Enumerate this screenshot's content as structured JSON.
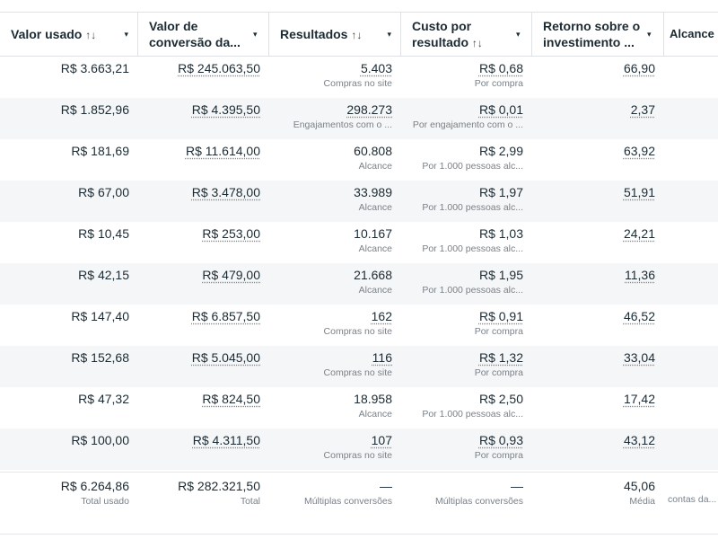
{
  "headers": [
    {
      "label": "Valor usado",
      "sort": "↑↓"
    },
    {
      "label": "Valor de conversão da...",
      "sort": ""
    },
    {
      "label": "Resultados",
      "sort": "↑↓"
    },
    {
      "label": "Custo por resultado",
      "sort": "↑↓"
    },
    {
      "label": "Retorno sobre o investimento ...",
      "sort": ""
    },
    {
      "label": "Alcance",
      "sort": ""
    }
  ],
  "dropdown_icon": "▾",
  "rows": [
    {
      "spent": "R$ 3.663,21",
      "conv": "R$ 245.063,50",
      "results": "5.403",
      "results_sub": "Compras no site",
      "cost": "R$ 0,68",
      "cost_sub": "Por compra",
      "roas": "66,90",
      "link": true
    },
    {
      "spent": "R$ 1.852,96",
      "conv": "R$ 4.395,50",
      "results": "298.273",
      "results_sub": "Engajamentos com o ...",
      "cost": "R$ 0,01",
      "cost_sub": "Por engajamento com o ...",
      "roas": "2,37",
      "link": true
    },
    {
      "spent": "R$ 181,69",
      "conv": "R$ 11.614,00",
      "results": "60.808",
      "results_sub": "Alcance",
      "cost": "R$ 2,99",
      "cost_sub": "Por 1.000 pessoas alc...",
      "roas": "63,92",
      "link": false
    },
    {
      "spent": "R$ 67,00",
      "conv": "R$ 3.478,00",
      "results": "33.989",
      "results_sub": "Alcance",
      "cost": "R$ 1,97",
      "cost_sub": "Por 1.000 pessoas alc...",
      "roas": "51,91",
      "link": false
    },
    {
      "spent": "R$ 10,45",
      "conv": "R$ 253,00",
      "results": "10.167",
      "results_sub": "Alcance",
      "cost": "R$ 1,03",
      "cost_sub": "Por 1.000 pessoas alc...",
      "roas": "24,21",
      "link": false
    },
    {
      "spent": "R$ 42,15",
      "conv": "R$ 479,00",
      "results": "21.668",
      "results_sub": "Alcance",
      "cost": "R$ 1,95",
      "cost_sub": "Por 1.000 pessoas alc...",
      "roas": "11,36",
      "link": false
    },
    {
      "spent": "R$ 147,40",
      "conv": "R$ 6.857,50",
      "results": "162",
      "results_sub": "Compras no site",
      "cost": "R$ 0,91",
      "cost_sub": "Por compra",
      "roas": "46,52",
      "link": true
    },
    {
      "spent": "R$ 152,68",
      "conv": "R$ 5.045,00",
      "results": "116",
      "results_sub": "Compras no site",
      "cost": "R$ 1,32",
      "cost_sub": "Por compra",
      "roas": "33,04",
      "link": true
    },
    {
      "spent": "R$ 47,32",
      "conv": "R$ 824,50",
      "results": "18.958",
      "results_sub": "Alcance",
      "cost": "R$ 2,50",
      "cost_sub": "Por 1.000 pessoas alc...",
      "roas": "17,42",
      "link": false
    },
    {
      "spent": "R$ 100,00",
      "conv": "R$ 4.311,50",
      "results": "107",
      "results_sub": "Compras no site",
      "cost": "R$ 0,93",
      "cost_sub": "Por compra",
      "roas": "43,12",
      "link": true
    }
  ],
  "totals": {
    "spent": "R$ 6.264,86",
    "spent_sub": "Total usado",
    "conv": "R$ 282.321,50",
    "conv_sub": "Total",
    "results": "—",
    "results_sub": "Múltiplas conversões",
    "cost": "—",
    "cost_sub": "Múltiplas conversões",
    "roas": "45,06",
    "roas_sub": "Média",
    "reach_sub": "contas da..."
  }
}
